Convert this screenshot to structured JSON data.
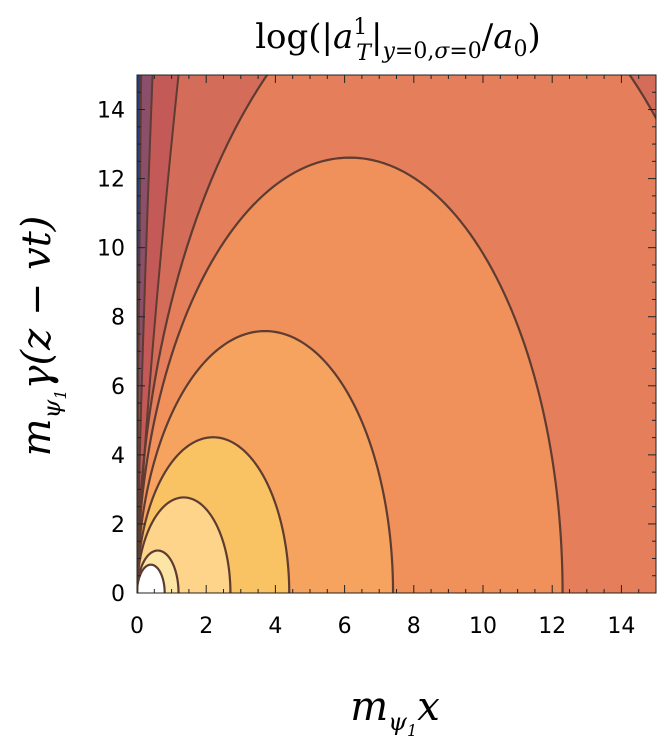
{
  "chart_data": {
    "type": "contour",
    "title": "log(|a_T^1|_{y=0,σ=0}/a_0)",
    "xlabel": "m_{ψ_1} x",
    "ylabel": "m_{ψ_1} γ(z − vt)",
    "xlim": [
      0,
      15
    ],
    "ylim": [
      0,
      15
    ],
    "x_ticks": [
      "0",
      "2",
      "4",
      "6",
      "8",
      "10",
      "12",
      "14"
    ],
    "y_ticks": [
      "0",
      "2",
      "4",
      "6",
      "8",
      "10",
      "12",
      "14"
    ],
    "contour_radii_on_x_axis": [
      0.8,
      1.2,
      2.7,
      4.4,
      7.4,
      12.3,
      18.0
    ],
    "region_colors": [
      "#ffffff",
      "#fde5a6",
      "#fdd489",
      "#f9c363",
      "#f5a35f",
      "#f0905a",
      "#e57f5b",
      "#d46c5a",
      "#c45a58",
      "#8a4f6b",
      "#2a3d7f"
    ],
    "contour_line_color": "#5e3c32"
  }
}
